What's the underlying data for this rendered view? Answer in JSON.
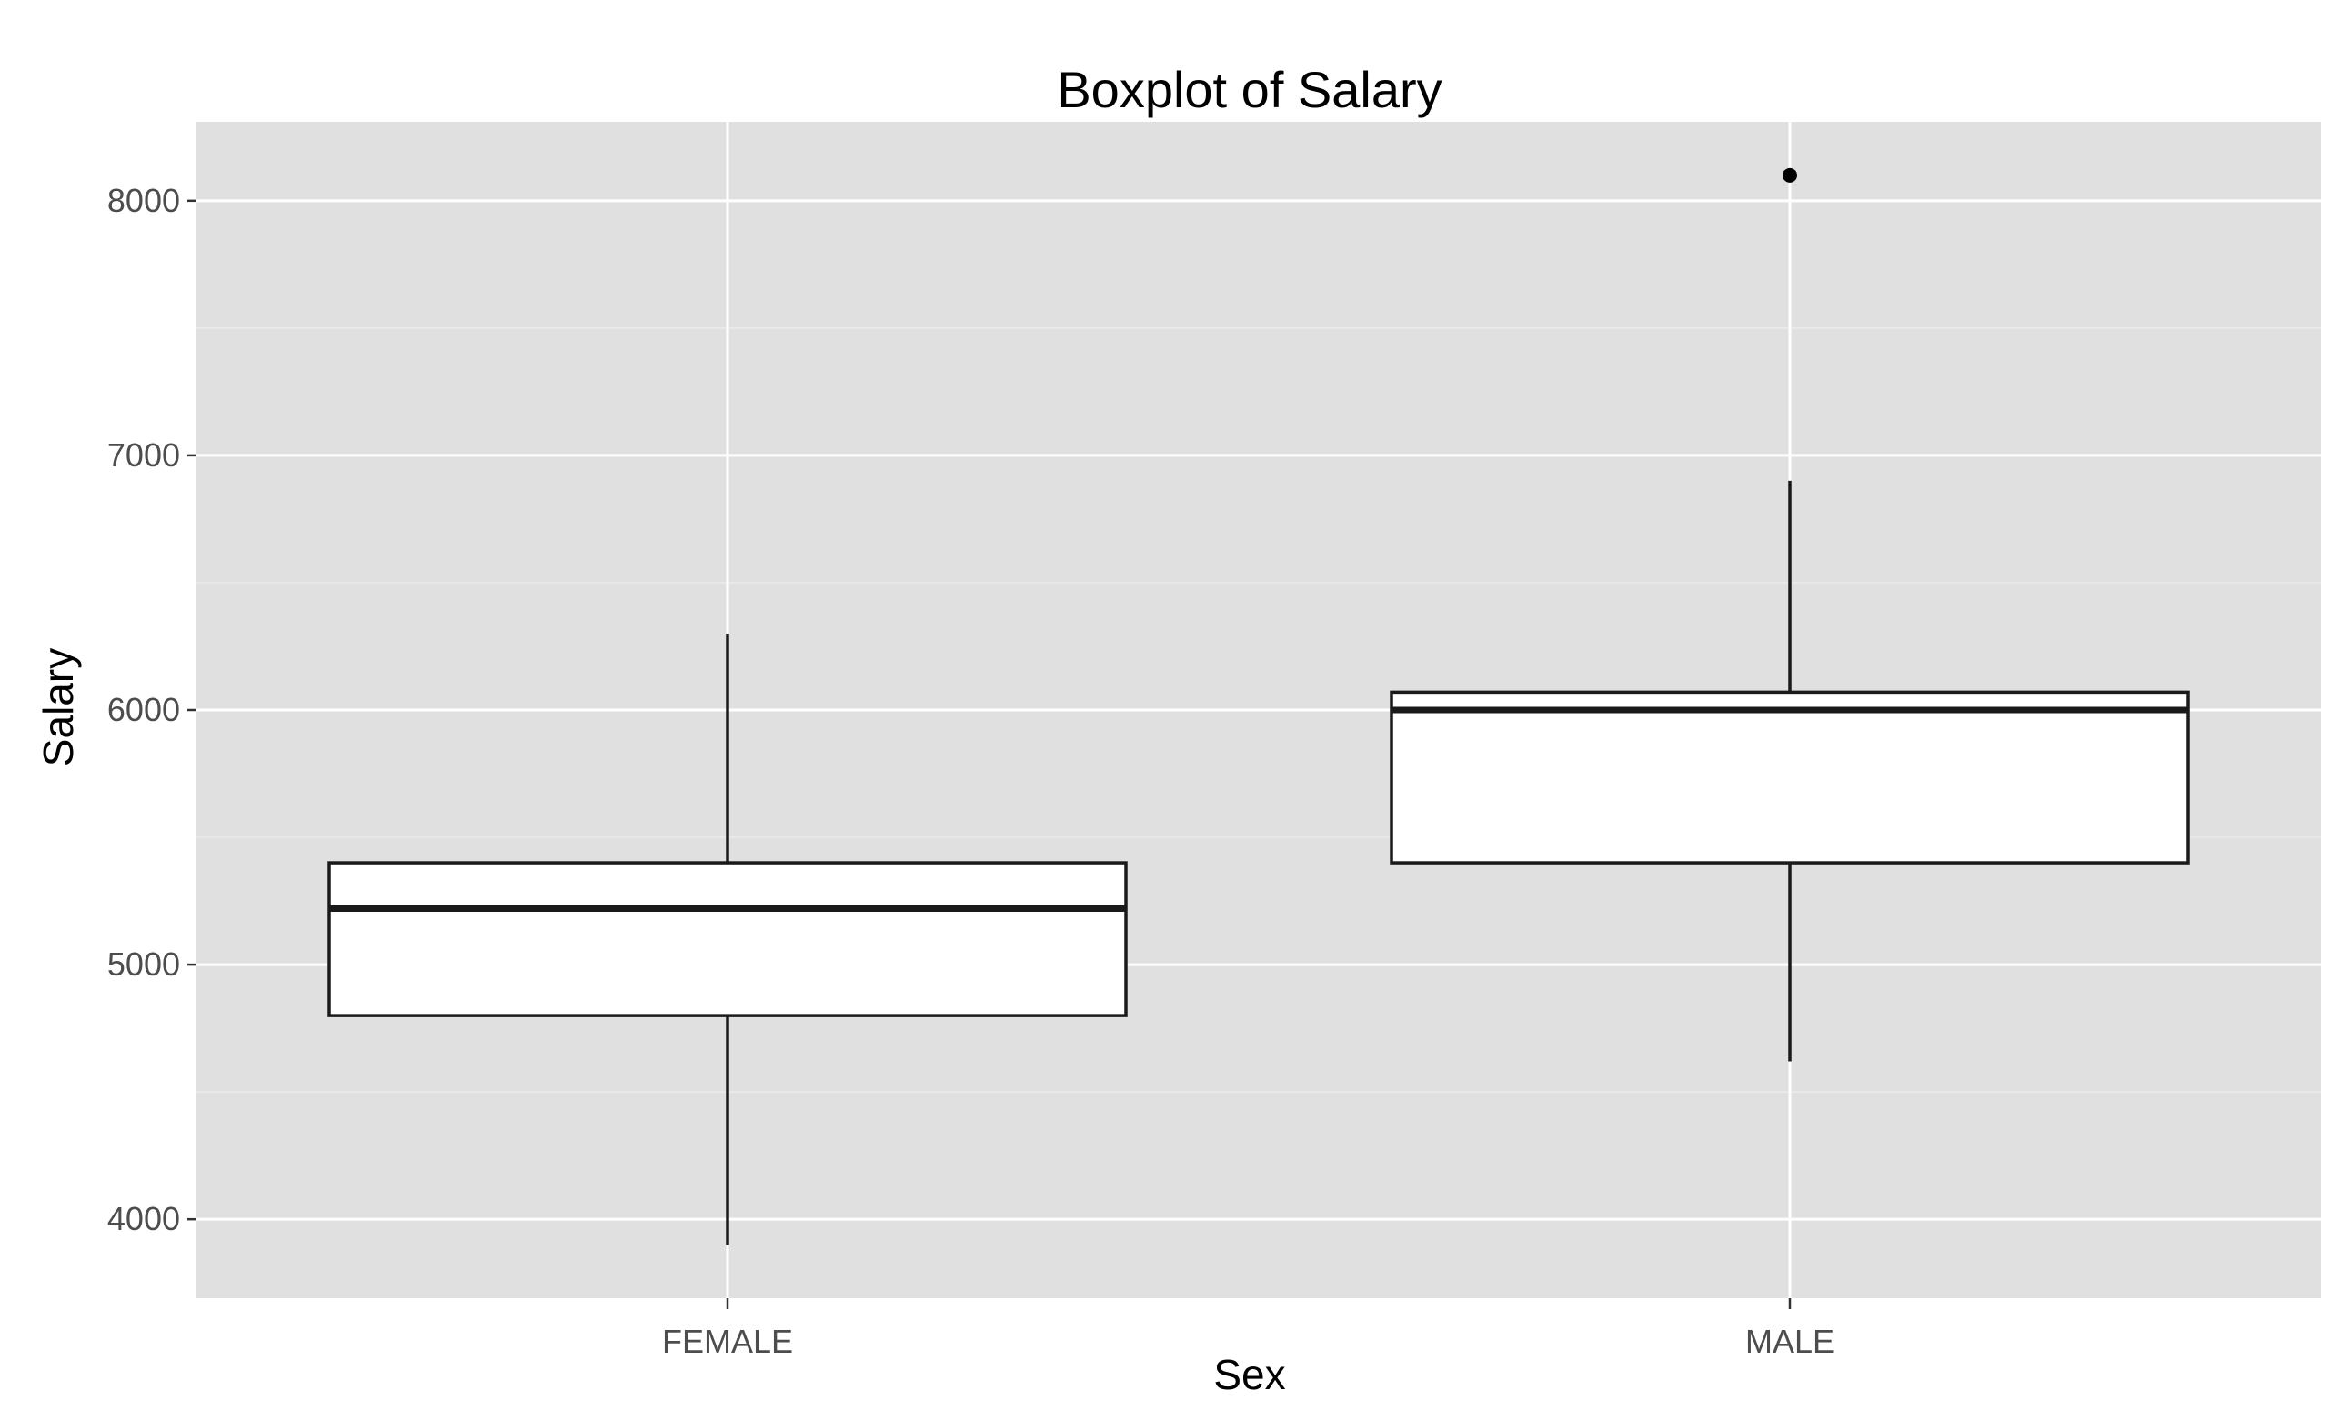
{
  "chart_data": {
    "type": "boxplot",
    "title": "Boxplot of Salary",
    "xlabel": "Sex",
    "ylabel": "Salary",
    "categories": [
      "FEMALE",
      "MALE"
    ],
    "ylim": [
      3690,
      8310
    ],
    "yticks": [
      4000,
      5000,
      6000,
      7000,
      8000
    ],
    "ytick_labels": [
      "4000",
      "5000",
      "6000",
      "7000",
      "8000"
    ],
    "grid": true,
    "boxes": [
      {
        "category": "FEMALE",
        "whisker_low": 3900,
        "q1": 4800,
        "median": 5220,
        "q3": 5400,
        "whisker_high": 6300,
        "outliers": []
      },
      {
        "category": "MALE",
        "whisker_low": 4620,
        "q1": 5400,
        "median": 6000,
        "q3": 6070,
        "whisker_high": 6900,
        "outliers": [
          8100
        ]
      }
    ]
  },
  "colors": {
    "panel_background": "#e0e0e0",
    "grid_major": "#ffffff",
    "grid_minor": "#ebebeb",
    "box_fill": "#ffffff",
    "box_stroke": "#1a1a1a",
    "outlier": "#000000",
    "tick_label": "#4d4d4d"
  }
}
